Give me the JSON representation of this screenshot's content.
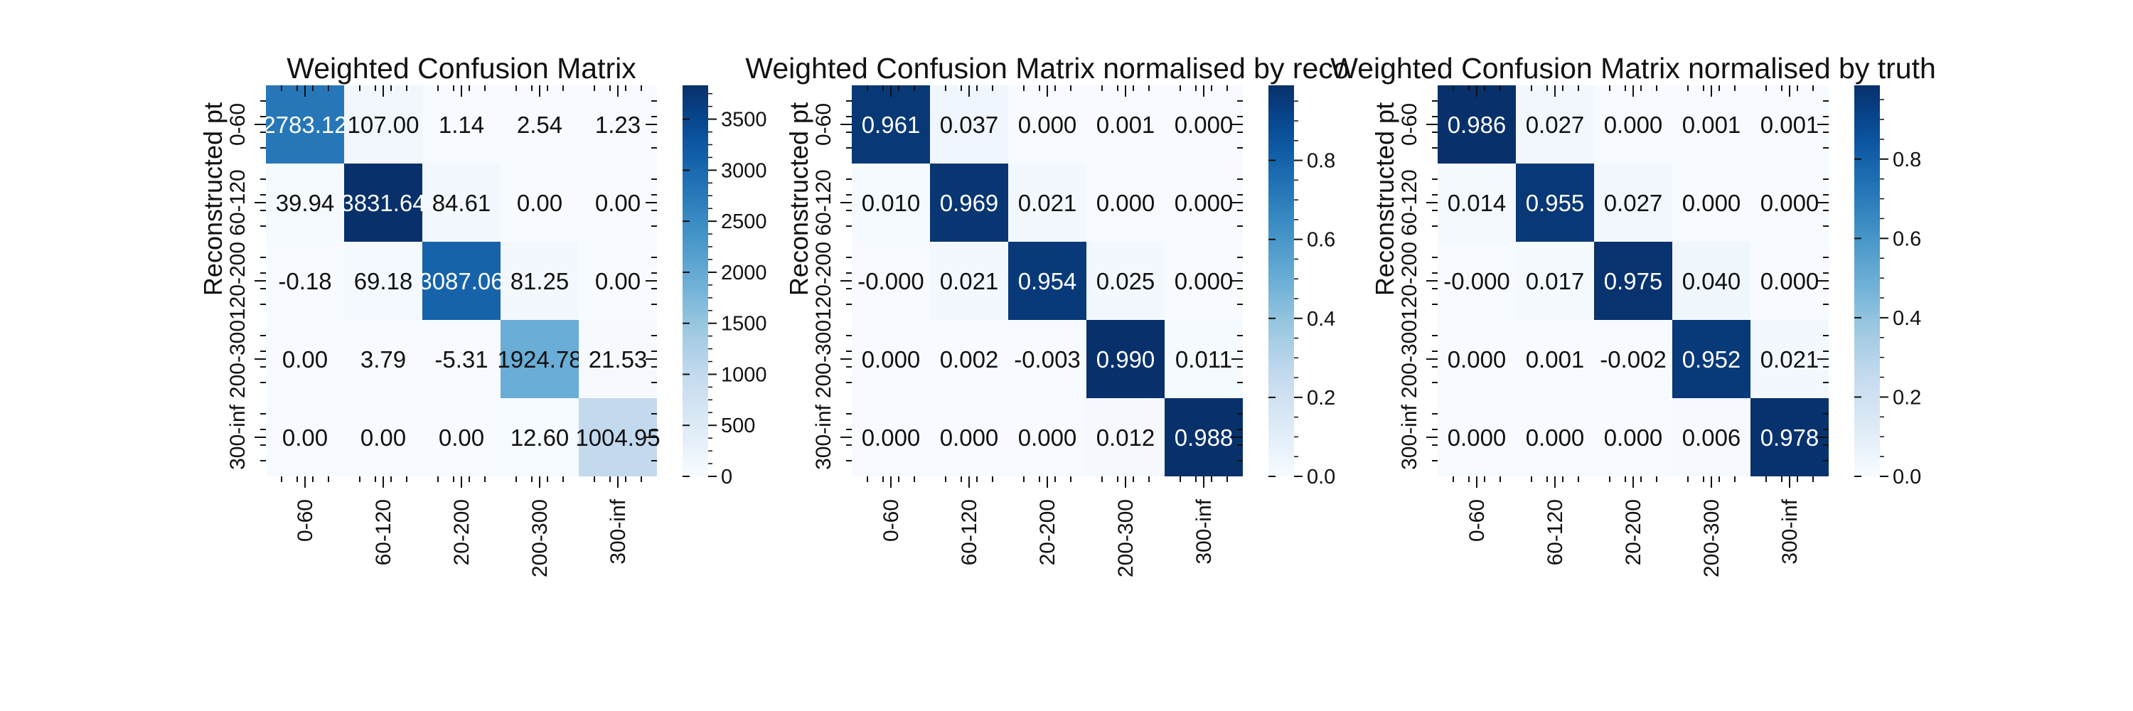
{
  "chart_data": [
    {
      "type": "heatmap",
      "title": "Weighted Confusion Matrix",
      "xlabel": "",
      "ylabel": "Reconstructed pt",
      "x_categories": [
        "0-60",
        "60-120",
        "120-200",
        "200-300",
        "300-inf"
      ],
      "y_categories": [
        "0-60",
        "60-120",
        "120-200",
        "200-300",
        "300-inf"
      ],
      "x_tick_labels_visible": [
        "0-60",
        "60-120",
        "20-200",
        "200-300",
        "300-inf"
      ],
      "y_tick_labels_visible": [
        "0-60",
        "60-120",
        "120-200",
        "200-300",
        "300-inf"
      ],
      "cell_labels": [
        [
          "2783.12",
          "107.00",
          "1.14",
          "2.54",
          "1.23"
        ],
        [
          "39.94",
          "3831.64",
          "84.61",
          "0.00",
          "0.00"
        ],
        [
          "-0.18",
          "69.18",
          "3087.06",
          "81.25",
          "0.00"
        ],
        [
          "0.00",
          "3.79",
          "-5.31",
          "1924.78",
          "21.53"
        ],
        [
          "0.00",
          "0.00",
          "0.00",
          "12.60",
          "1004.95"
        ]
      ],
      "values": [
        [
          2783.12,
          107.0,
          1.14,
          2.54,
          1.23
        ],
        [
          39.94,
          3831.64,
          84.61,
          0.0,
          0.0
        ],
        [
          -0.18,
          69.18,
          3087.06,
          81.25,
          0.0
        ],
        [
          0.0,
          3.79,
          -5.31,
          1924.78,
          21.53
        ],
        [
          0.0,
          0.0,
          0.0,
          12.6,
          1004.95
        ]
      ],
      "vmin": 0,
      "vmax": 3831.64,
      "colormap": "Blues",
      "colorbar_ticks": [
        0,
        500,
        1000,
        1500,
        2000,
        2500,
        3000,
        3500
      ]
    },
    {
      "type": "heatmap",
      "title": "Weighted Confusion Matrix normalised by reco",
      "xlabel": "",
      "ylabel": "Reconstructed pt",
      "x_categories": [
        "0-60",
        "60-120",
        "120-200",
        "200-300",
        "300-inf"
      ],
      "y_categories": [
        "0-60",
        "60-120",
        "120-200",
        "200-300",
        "300-inf"
      ],
      "x_tick_labels_visible": [
        "0-60",
        "60-120",
        "20-200",
        "200-300",
        "300-inf"
      ],
      "y_tick_labels_visible": [
        "0-60",
        "60-120",
        "120-200",
        "200-300",
        "300-inf"
      ],
      "cell_labels": [
        [
          "0.961",
          "0.037",
          "0.000",
          "0.001",
          "0.000"
        ],
        [
          "0.010",
          "0.969",
          "0.021",
          "0.000",
          "0.000"
        ],
        [
          "-0.000",
          "0.021",
          "0.954",
          "0.025",
          "0.000"
        ],
        [
          "0.000",
          "0.002",
          "-0.003",
          "0.990",
          "0.011"
        ],
        [
          "0.000",
          "0.000",
          "0.000",
          "0.012",
          "0.988"
        ]
      ],
      "values": [
        [
          0.961,
          0.037,
          0.0,
          0.001,
          0.0
        ],
        [
          0.01,
          0.969,
          0.021,
          0.0,
          0.0
        ],
        [
          -0.0,
          0.021,
          0.954,
          0.025,
          0.0
        ],
        [
          0.0,
          0.002,
          -0.003,
          0.99,
          0.011
        ],
        [
          0.0,
          0.0,
          0.0,
          0.012,
          0.988
        ]
      ],
      "vmin": 0,
      "vmax": 0.99,
      "colormap": "Blues",
      "colorbar_ticks": [
        0.0,
        0.2,
        0.4,
        0.6,
        0.8
      ],
      "colorbar_tick_labels": [
        "0.0",
        "0.2",
        "0.4",
        "0.6",
        "0.8"
      ]
    },
    {
      "type": "heatmap",
      "title": "Weighted Confusion Matrix normalised by truth",
      "xlabel": "",
      "ylabel": "Reconstructed pt",
      "x_categories": [
        "0-60",
        "60-120",
        "120-200",
        "200-300",
        "300-inf"
      ],
      "y_categories": [
        "0-60",
        "60-120",
        "120-200",
        "200-300",
        "300-inf"
      ],
      "x_tick_labels_visible": [
        "0-60",
        "60-120",
        "20-200",
        "200-300",
        "300-inf"
      ],
      "y_tick_labels_visible": [
        "0-60",
        "60-120",
        "120-200",
        "200-300",
        "300-inf"
      ],
      "cell_labels": [
        [
          "0.986",
          "0.027",
          "0.000",
          "0.001",
          "0.001"
        ],
        [
          "0.014",
          "0.955",
          "0.027",
          "0.000",
          "0.000"
        ],
        [
          "-0.000",
          "0.017",
          "0.975",
          "0.040",
          "0.000"
        ],
        [
          "0.000",
          "0.001",
          "-0.002",
          "0.952",
          "0.021"
        ],
        [
          "0.000",
          "0.000",
          "0.000",
          "0.006",
          "0.978"
        ]
      ],
      "values": [
        [
          0.986,
          0.027,
          0.0,
          0.001,
          0.001
        ],
        [
          0.014,
          0.955,
          0.027,
          0.0,
          0.0
        ],
        [
          -0.0,
          0.017,
          0.975,
          0.04,
          0.0
        ],
        [
          0.0,
          0.001,
          -0.002,
          0.952,
          0.021
        ],
        [
          0.0,
          0.0,
          0.0,
          0.006,
          0.978
        ]
      ],
      "vmin": 0,
      "vmax": 0.986,
      "colormap": "Blues",
      "colorbar_ticks": [
        0.0,
        0.2,
        0.4,
        0.6,
        0.8
      ],
      "colorbar_tick_labels": [
        "0.0",
        "0.2",
        "0.4",
        "0.6",
        "0.8"
      ]
    }
  ]
}
